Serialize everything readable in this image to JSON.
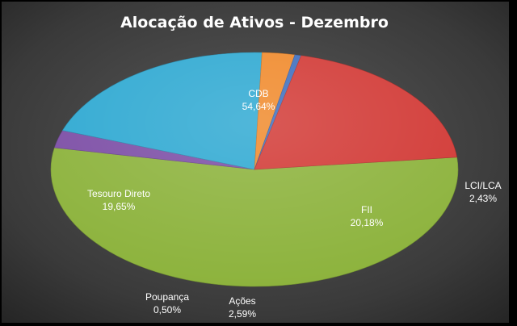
{
  "chart_data": {
    "type": "pie",
    "title": "Alocação de Ativos - Dezembro",
    "slices": [
      {
        "label": "CDB",
        "percent_label": "54,64%",
        "value": 54.64,
        "color": "#8db33d"
      },
      {
        "label": "LCI/LCA",
        "percent_label": "2,43%",
        "value": 2.43,
        "color": "#7d4fa6"
      },
      {
        "label": "FII",
        "percent_label": "20,18%",
        "value": 20.18,
        "color": "#2fa9d2"
      },
      {
        "label": "Ações",
        "percent_label": "2,59%",
        "value": 2.59,
        "color": "#f08a2c"
      },
      {
        "label": "Poupança",
        "percent_label": "0,50%",
        "value": 0.5,
        "color": "#3f6fbf"
      },
      {
        "label": "Tesouro Direto",
        "percent_label": "19,65%",
        "value": 19.65,
        "color": "#d23a36"
      }
    ],
    "legend": "none",
    "style": "3d"
  }
}
